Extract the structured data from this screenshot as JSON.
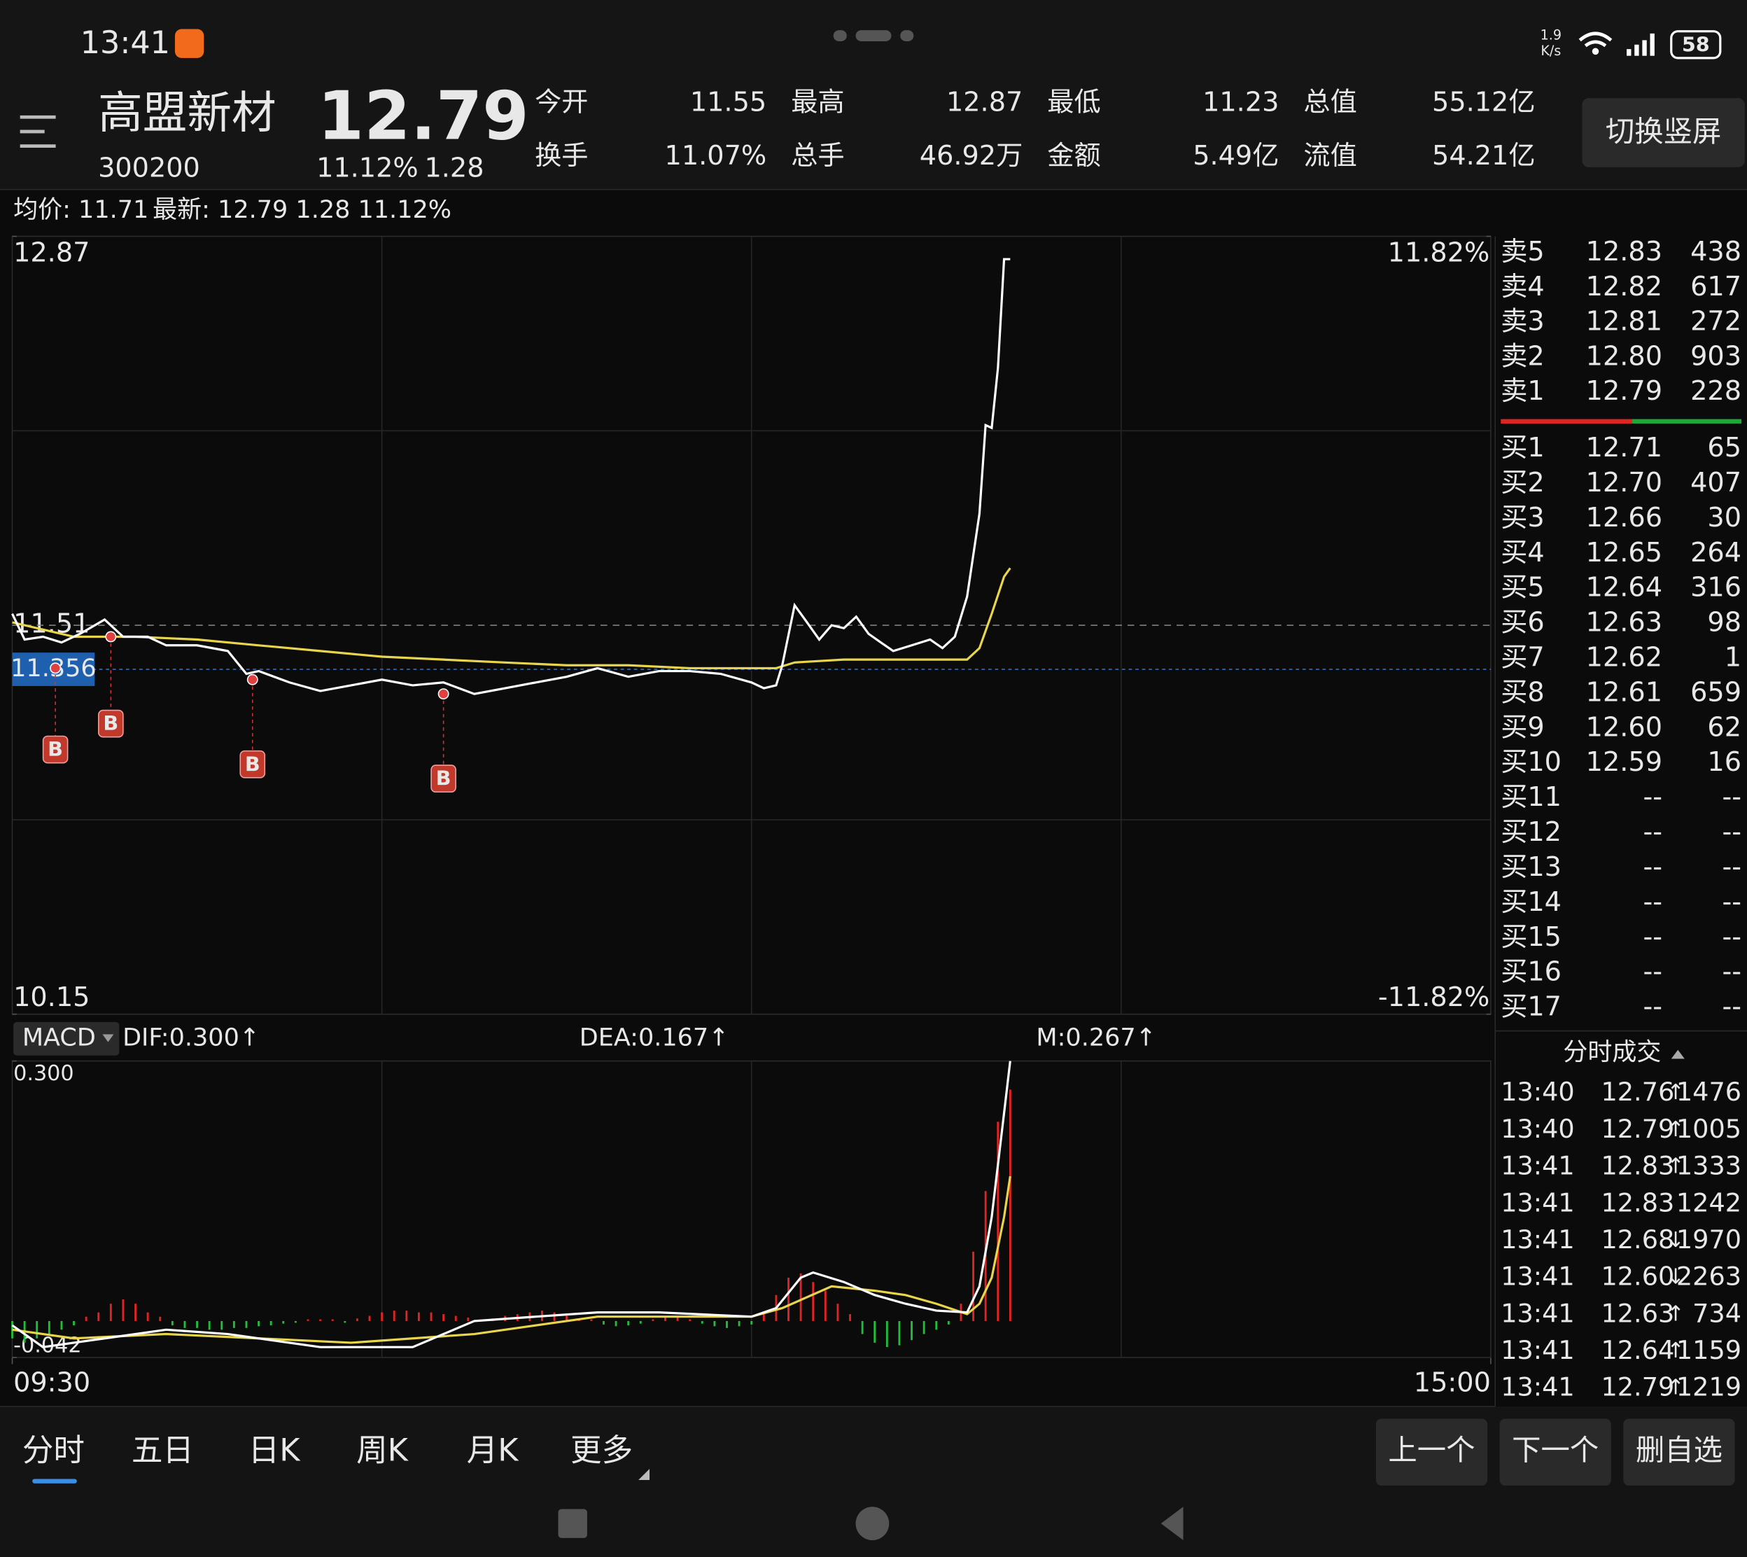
{
  "status_bar": {
    "time": "13:41",
    "net_speed": "1.9",
    "net_unit": "K/s",
    "battery": "58"
  },
  "header": {
    "name": "高盟新材",
    "code": "300200",
    "price": "12.79",
    "change_pct": "11.12%",
    "change": "1.28",
    "button": "切换竖屏"
  },
  "stats": [
    {
      "label": "今开",
      "value": "11.55",
      "color": "#ff3333"
    },
    {
      "label": "最高",
      "value": "12.87",
      "color": "#ff3333"
    },
    {
      "label": "最低",
      "value": "11.23",
      "color": "#22cc22"
    },
    {
      "label": "总值",
      "value": "55.12亿",
      "color": "#e8e8e8"
    },
    {
      "label": "换手",
      "value": "11.07%",
      "color": "#e8e8e8"
    },
    {
      "label": "总手",
      "value": "46.92万",
      "color": "#e8e8e8"
    },
    {
      "label": "金额",
      "value": "5.49亿",
      "color": "#e8e8e8"
    },
    {
      "label": "流值",
      "value": "54.21亿",
      "color": "#e8e8e8"
    }
  ],
  "info_line": {
    "average": "均价: 11.71",
    "latest": "最新: 12.79 1.28 11.12%"
  },
  "chart_data": [
    {
      "type": "line",
      "xlim": [
        0,
        240
      ],
      "xticks": [
        {
          "value": 0,
          "label": "09:30"
        },
        {
          "value": 240,
          "label": "15:00"
        }
      ],
      "ylim": [
        10.15,
        12.87
      ],
      "yticks": [
        12.87,
        11.51,
        10.15
      ],
      "y2lim": [
        -11.82,
        11.82
      ],
      "y2ticks": [
        {
          "value": 11.82,
          "label": "11.82%"
        },
        {
          "value": -11.82,
          "label": "-11.82%"
        }
      ],
      "grid": true,
      "crosshair": 11.356,
      "series": [
        {
          "name": "price",
          "color": "#ffffff",
          "x": [
            0,
            2,
            5,
            8,
            11,
            15,
            18,
            22,
            25,
            30,
            35,
            38,
            40,
            45,
            50,
            55,
            60,
            65,
            70,
            75,
            80,
            85,
            90,
            95,
            100,
            105,
            110,
            115,
            120,
            122,
            124,
            125,
            127,
            129,
            131,
            133,
            135,
            137,
            139,
            141,
            143,
            146,
            149,
            151,
            153,
            155,
            157,
            158,
            159,
            160,
            161,
            162
          ],
          "values": [
            11.55,
            11.46,
            11.47,
            11.45,
            11.48,
            11.53,
            11.47,
            11.47,
            11.44,
            11.44,
            11.42,
            11.34,
            11.35,
            11.31,
            11.28,
            11.3,
            11.32,
            11.3,
            11.31,
            11.27,
            11.29,
            11.31,
            11.33,
            11.36,
            11.33,
            11.35,
            11.35,
            11.34,
            11.31,
            11.29,
            11.3,
            11.37,
            11.58,
            11.52,
            11.46,
            11.51,
            11.5,
            11.54,
            11.48,
            11.45,
            11.42,
            11.44,
            11.46,
            11.43,
            11.47,
            11.61,
            11.9,
            12.21,
            12.2,
            12.41,
            12.79,
            12.79
          ]
        },
        {
          "name": "average",
          "color": "#e8d44d",
          "x": [
            0,
            10,
            20,
            30,
            40,
            50,
            60,
            70,
            80,
            90,
            100,
            110,
            120,
            124,
            127,
            135,
            145,
            155,
            157,
            159,
            161,
            162
          ],
          "values": [
            11.52,
            11.47,
            11.47,
            11.46,
            11.44,
            11.42,
            11.4,
            11.39,
            11.38,
            11.37,
            11.37,
            11.36,
            11.36,
            11.36,
            11.38,
            11.39,
            11.39,
            11.39,
            11.43,
            11.55,
            11.68,
            11.71
          ]
        }
      ],
      "annotations": [
        {
          "x": 7,
          "y": 11.36,
          "label": "B"
        },
        {
          "x": 16,
          "y": 11.47,
          "label": "B"
        },
        {
          "x": 39,
          "y": 11.32,
          "label": "B"
        },
        {
          "x": 70,
          "y": 11.27,
          "label": "B"
        }
      ]
    },
    {
      "type": "macd",
      "title": "MACD",
      "legend": [
        "DIF:0.300↑",
        "DEA:0.167↑",
        "M:0.267↑"
      ],
      "xlim": [
        0,
        240
      ],
      "ylim": [
        -0.042,
        0.3
      ],
      "yticks": [
        {
          "value": 0.3,
          "label": "0.300"
        },
        -0.042
      ],
      "series": [
        {
          "name": "DIF",
          "color": "#ffffff",
          "x": [
            0,
            5,
            10,
            15,
            25,
            35,
            50,
            65,
            75,
            85,
            95,
            105,
            120,
            124,
            128,
            130,
            135,
            140,
            145,
            150,
            155,
            157,
            159,
            161,
            162
          ],
          "values": [
            -0.005,
            -0.03,
            -0.025,
            -0.02,
            -0.01,
            -0.015,
            -0.03,
            -0.03,
            0,
            0.005,
            0.01,
            0.01,
            0.005,
            0.015,
            0.05,
            0.056,
            0.045,
            0.03,
            0.02,
            0.012,
            0.01,
            0.04,
            0.12,
            0.24,
            0.3
          ]
        },
        {
          "name": "DEA",
          "color": "#e8d44d",
          "x": [
            0,
            10,
            25,
            40,
            55,
            75,
            95,
            120,
            125,
            133,
            140,
            145,
            150,
            155,
            157,
            159,
            161,
            162
          ],
          "values": [
            -0.01,
            -0.02,
            -0.015,
            -0.02,
            -0.025,
            -0.015,
            0.005,
            0.005,
            0.015,
            0.04,
            0.035,
            0.03,
            0.02,
            0.008,
            0.02,
            0.05,
            0.12,
            0.167
          ]
        },
        {
          "name": "M",
          "color": "#e02424",
          "negative_color": "#1fbf3a",
          "x": [
            0,
            2,
            4,
            6,
            8,
            10,
            12,
            14,
            16,
            18,
            20,
            22,
            24,
            26,
            28,
            30,
            32,
            34,
            36,
            38,
            40,
            42,
            44,
            46,
            48,
            50,
            52,
            54,
            56,
            58,
            60,
            62,
            64,
            66,
            68,
            70,
            72,
            74,
            76,
            78,
            80,
            82,
            84,
            86,
            88,
            90,
            92,
            94,
            96,
            98,
            100,
            102,
            104,
            106,
            108,
            110,
            112,
            114,
            116,
            118,
            120,
            122,
            124,
            126,
            128,
            130,
            132,
            134,
            136,
            138,
            140,
            142,
            144,
            146,
            148,
            150,
            152,
            154,
            156,
            158,
            160,
            162
          ],
          "values": [
            -0.02,
            -0.025,
            -0.02,
            -0.015,
            -0.01,
            -0.005,
            0.005,
            0.01,
            0.02,
            0.025,
            0.02,
            0.01,
            0.005,
            -0.005,
            -0.008,
            -0.008,
            -0.01,
            -0.01,
            -0.008,
            -0.008,
            -0.006,
            -0.005,
            -0.003,
            -0.002,
            0.002,
            0.002,
            0.002,
            -0.002,
            0.003,
            0.006,
            0.01,
            0.012,
            0.012,
            0.01,
            0.01,
            0.008,
            0.006,
            0.004,
            0.002,
            0.003,
            0.006,
            0.008,
            0.01,
            0.012,
            0.01,
            0.006,
            0.003,
            0.002,
            -0.004,
            -0.006,
            -0.005,
            -0.003,
            0.002,
            0.004,
            0.004,
            0.002,
            -0.003,
            -0.006,
            -0.008,
            -0.006,
            -0.004,
            0.01,
            0.03,
            0.05,
            0.055,
            0.045,
            0.035,
            0.02,
            0.008,
            -0.015,
            -0.025,
            -0.03,
            -0.028,
            -0.022,
            -0.015,
            -0.01,
            -0.004,
            0.02,
            0.08,
            0.15,
            0.23,
            0.267
          ]
        }
      ]
    }
  ],
  "order_book": {
    "asks": [
      {
        "label": "卖5",
        "price": "12.83",
        "volume": "438"
      },
      {
        "label": "卖4",
        "price": "12.82",
        "volume": "617"
      },
      {
        "label": "卖3",
        "price": "12.81",
        "volume": "272"
      },
      {
        "label": "卖2",
        "price": "12.80",
        "volume": "903"
      },
      {
        "label": "卖1",
        "price": "12.79",
        "volume": "228"
      }
    ],
    "bids": [
      {
        "label": "买1",
        "price": "12.71",
        "volume": "65"
      },
      {
        "label": "买2",
        "price": "12.70",
        "volume": "407"
      },
      {
        "label": "买3",
        "price": "12.66",
        "volume": "30"
      },
      {
        "label": "买4",
        "price": "12.65",
        "volume": "264"
      },
      {
        "label": "买5",
        "price": "12.64",
        "volume": "316"
      },
      {
        "label": "买6",
        "price": "12.63",
        "volume": "98"
      },
      {
        "label": "买7",
        "price": "12.62",
        "volume": "1"
      },
      {
        "label": "买8",
        "price": "12.61",
        "volume": "659"
      },
      {
        "label": "买9",
        "price": "12.60",
        "volume": "62"
      },
      {
        "label": "买10",
        "price": "12.59",
        "volume": "16"
      },
      {
        "label": "买11",
        "price": "--",
        "volume": "--"
      },
      {
        "label": "买12",
        "price": "--",
        "volume": "--"
      },
      {
        "label": "买13",
        "price": "--",
        "volume": "--"
      },
      {
        "label": "买14",
        "price": "--",
        "volume": "--"
      },
      {
        "label": "买15",
        "price": "--",
        "volume": "--"
      },
      {
        "label": "买16",
        "price": "--",
        "volume": "--"
      },
      {
        "label": "买17",
        "price": "--",
        "volume": "--"
      }
    ]
  },
  "trades": {
    "title": "分时成交",
    "rows": [
      {
        "time": "13:40",
        "price": "12.76",
        "dir": "↑",
        "volume": "1476",
        "color": "#ff3333"
      },
      {
        "time": "13:40",
        "price": "12.79",
        "dir": "↑",
        "volume": "1005",
        "color": "#ff3333"
      },
      {
        "time": "13:41",
        "price": "12.83",
        "dir": "↑",
        "volume": "1333",
        "color": "#ff3333"
      },
      {
        "time": "13:41",
        "price": "12.83",
        "dir": "",
        "volume": "1242",
        "color": "#ff3333"
      },
      {
        "time": "13:41",
        "price": "12.68",
        "dir": "↓",
        "volume": "1970",
        "color": "#22cc22"
      },
      {
        "time": "13:41",
        "price": "12.60",
        "dir": "↓",
        "volume": "2263",
        "color": "#22cc22"
      },
      {
        "time": "13:41",
        "price": "12.63",
        "dir": "↑",
        "volume": "734",
        "color": "#ff3333"
      },
      {
        "time": "13:41",
        "price": "12.64",
        "dir": "↑",
        "volume": "1159",
        "color": "#ff3333"
      },
      {
        "time": "13:41",
        "price": "12.79",
        "dir": "↑",
        "volume": "1219",
        "color": "#ff3333"
      }
    ]
  },
  "tabs": [
    "分时",
    "五日",
    "日K",
    "周K",
    "月K",
    "更多"
  ],
  "buttons": [
    "上一个",
    "下一个",
    "删自选"
  ]
}
